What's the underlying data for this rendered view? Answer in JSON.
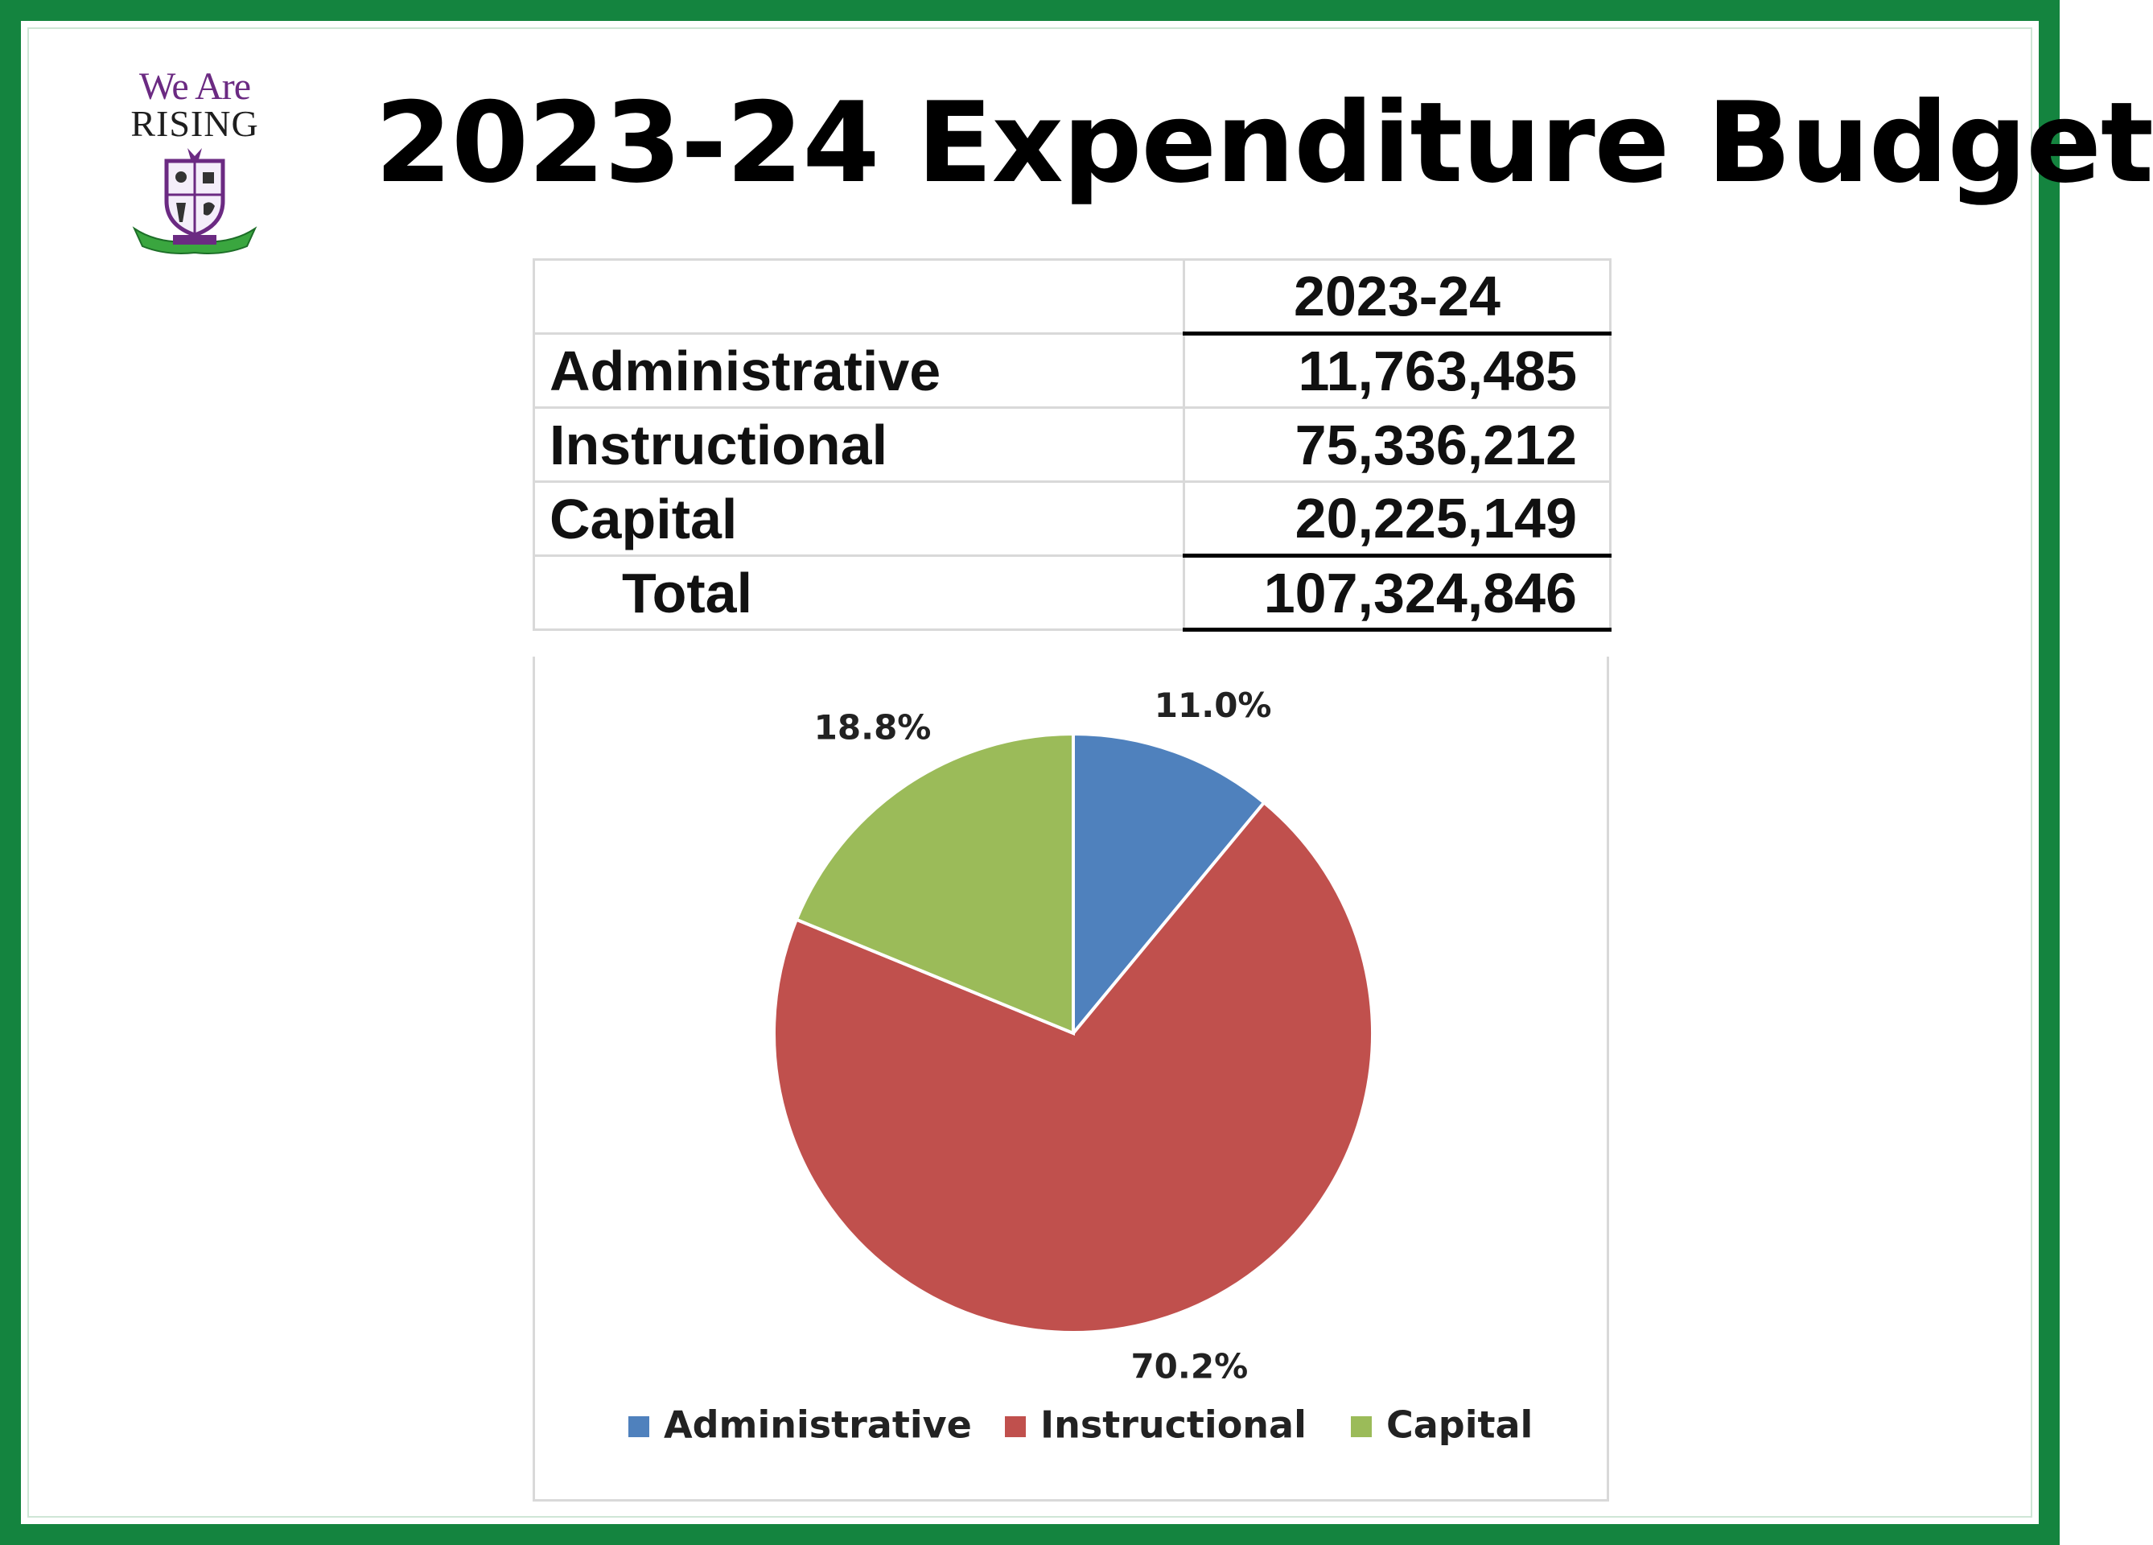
{
  "logo": {
    "line1": "We Are",
    "line2": "RISING"
  },
  "title": "2023-24 Expenditure Budget",
  "table": {
    "header": [
      "",
      "2023-24"
    ],
    "rows": [
      {
        "label": "Administrative",
        "value": "11,763,485"
      },
      {
        "label": "Instructional",
        "value": "75,336,212"
      },
      {
        "label": "Capital",
        "value": "20,225,149"
      }
    ],
    "total": {
      "label": "Total",
      "value": "107,324,846"
    }
  },
  "colors": {
    "frame": "#14843f",
    "administrative": "#4f81bd",
    "instructional": "#c0504d",
    "capital": "#9bbb59"
  },
  "chart_data": {
    "type": "pie",
    "slices": [
      {
        "name": "Administrative",
        "value": 11.0,
        "label": "11.0%",
        "color": "#4f81bd"
      },
      {
        "name": "Instructional",
        "value": 70.2,
        "label": "70.2%",
        "color": "#c0504d"
      },
      {
        "name": "Capital",
        "value": 18.8,
        "label": "18.8%",
        "color": "#9bbb59"
      }
    ],
    "legend_position": "bottom",
    "legend": [
      "Administrative",
      "Instructional",
      "Capital"
    ]
  }
}
